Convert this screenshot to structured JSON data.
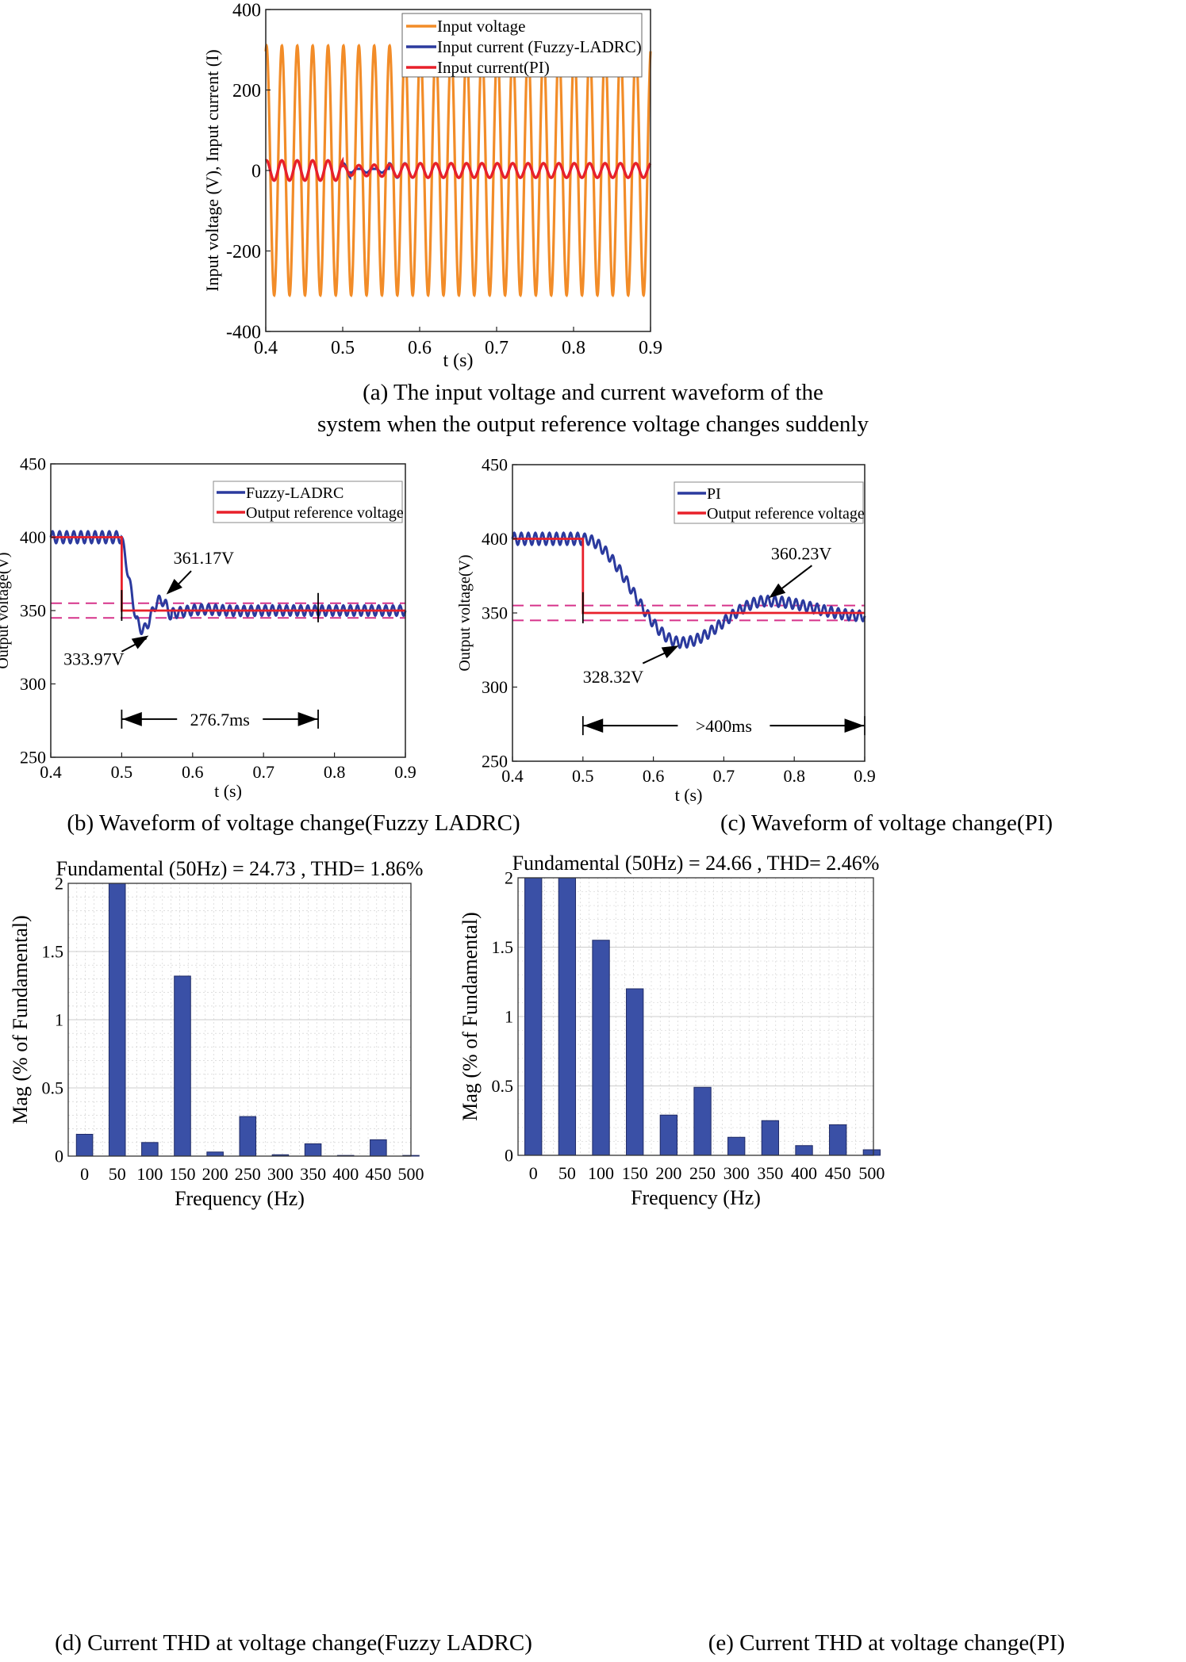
{
  "chart_data": [
    {
      "id": "a",
      "type": "line",
      "caption_line1": "(a) The input voltage and current waveform of the",
      "caption_line2": "system when the output reference voltage changes suddenly",
      "xlabel": "t (s)",
      "ylabel": "Input voltage (V), Input current (I)",
      "xlim": [
        0.4,
        0.9
      ],
      "ylim": [
        -400,
        400
      ],
      "xticks": [
        "0.4",
        "0.5",
        "0.6",
        "0.7",
        "0.8",
        "0.9"
      ],
      "yticks": [
        "-400",
        "-200",
        "0",
        "200",
        "400"
      ],
      "series": [
        {
          "name": "Input voltage",
          "color": "#F28C28",
          "amplitude": 310,
          "frequency_hz": 50
        },
        {
          "name": "Input current (Fuzzy-LADRC)",
          "color": "#2B3A9E",
          "amplitude_before": 25,
          "amplitude_after": 18
        },
        {
          "name": "Input current(PI)",
          "color": "#E8202A",
          "amplitude_before": 25,
          "amplitude_after": 18
        }
      ]
    },
    {
      "id": "b",
      "type": "line",
      "caption": "(b) Waveform of voltage change(Fuzzy LADRC)",
      "xlabel": "t (s)",
      "ylabel": "Output voltage(V)",
      "xlim": [
        0.4,
        0.9
      ],
      "ylim": [
        250,
        450
      ],
      "xticks": [
        "0.4",
        "0.5",
        "0.6",
        "0.7",
        "0.8",
        "0.9"
      ],
      "yticks": [
        "250",
        "300",
        "350",
        "400",
        "450"
      ],
      "series": [
        {
          "name": "Fuzzy-LADRC",
          "color": "#2B3A9E"
        },
        {
          "name": "Output reference voltage",
          "color": "#E8202A",
          "before": 400,
          "after": 350,
          "step_time": 0.5
        }
      ],
      "annotations": {
        "peak": "361.17V",
        "trough": "333.97V",
        "duration": "276.7ms"
      },
      "band": [
        345,
        355
      ],
      "settle_time": 0.777
    },
    {
      "id": "c",
      "type": "line",
      "caption": "(c) Waveform of voltage change(PI)",
      "xlabel": "t (s)",
      "ylabel": "Output voltage(V)",
      "xlim": [
        0.4,
        0.9
      ],
      "ylim": [
        250,
        450
      ],
      "xticks": [
        "0.4",
        "0.5",
        "0.6",
        "0.7",
        "0.8",
        "0.9"
      ],
      "yticks": [
        "250",
        "300",
        "350",
        "400",
        "450"
      ],
      "series": [
        {
          "name": "PI",
          "color": "#2B3A9E"
        },
        {
          "name": "Output reference voltage",
          "color": "#E8202A",
          "before": 400,
          "after": 350,
          "step_time": 0.5
        }
      ],
      "annotations": {
        "peak": "360.23V",
        "trough": "328.32V",
        "duration": ">400ms"
      },
      "band": [
        345,
        355
      ]
    },
    {
      "id": "d",
      "type": "bar",
      "title": "Fundamental (50Hz) = 24.73 , THD= 1.86%",
      "caption": "(d) Current THD at voltage change(Fuzzy LADRC)",
      "xlabel": "Frequency (Hz)",
      "ylabel": "Mag (% of Fundamental)",
      "ylim": [
        0,
        2
      ],
      "categories": [
        "0",
        "50",
        "100",
        "150",
        "200",
        "250",
        "300",
        "350",
        "400",
        "450",
        "500"
      ],
      "yticks": [
        "0",
        "0.5",
        "1",
        "1.5",
        "2"
      ],
      "values": [
        0.16,
        2.0,
        0.1,
        1.32,
        0.03,
        0.29,
        0.01,
        0.09,
        0.005,
        0.12,
        0.005
      ],
      "color": "#3A50A6"
    },
    {
      "id": "e",
      "type": "bar",
      "title": "Fundamental (50Hz) = 24.66 , THD= 2.46%",
      "caption": "(e) Current THD at voltage change(PI)",
      "xlabel": "Frequency (Hz)",
      "ylabel": "Mag (% of Fundamental)",
      "ylim": [
        0,
        2
      ],
      "categories": [
        "0",
        "50",
        "100",
        "150",
        "200",
        "250",
        "300",
        "350",
        "400",
        "450",
        "500"
      ],
      "yticks": [
        "0",
        "0.5",
        "1",
        "1.5",
        "2"
      ],
      "values": [
        2.0,
        2.0,
        1.55,
        1.2,
        0.29,
        0.49,
        0.13,
        0.25,
        0.07,
        0.22,
        0.04
      ],
      "color": "#3A50A6"
    }
  ]
}
